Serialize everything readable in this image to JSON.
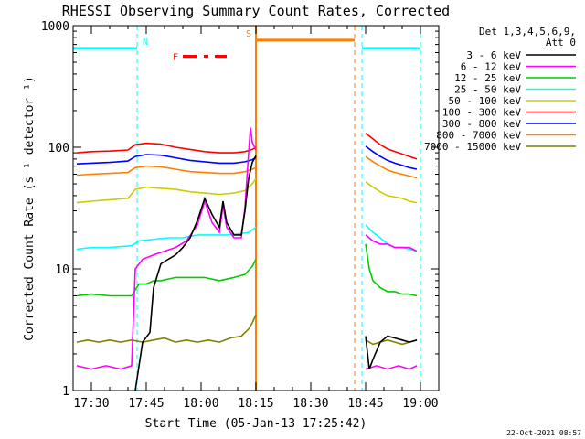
{
  "chart_data": {
    "type": "line",
    "title": "RHESSI Observing Summary Count Rates, Corrected",
    "ylabel": "Corrected Count Rate (s⁻¹ detector⁻¹)",
    "xlabel": "Start Time (05-Jan-13 17:25:42)",
    "y_scale": "log",
    "ylim": [
      1,
      1000
    ],
    "xlim_minutes_after_1725": [
      0,
      100
    ],
    "y_ticks": [
      "1",
      "10",
      "100",
      "1000"
    ],
    "x_ticks": [
      {
        "label": "17:30",
        "min": 5
      },
      {
        "label": "17:45",
        "min": 20
      },
      {
        "label": "18:00",
        "min": 35
      },
      {
        "label": "18:15",
        "min": 50
      },
      {
        "label": "18:30",
        "min": 65
      },
      {
        "label": "18:45",
        "min": 80
      },
      {
        "label": "19:00",
        "min": 95
      }
    ],
    "legend_header": [
      "Det 1,3,4,5,6,9,",
      "Att 0"
    ],
    "legend_placement": "right",
    "series": [
      {
        "name": "3 - 6 keV",
        "color": "#000000",
        "segments": [
          [
            [
              17,
              1
            ],
            [
              19,
              2.5
            ],
            [
              21,
              3
            ],
            [
              22,
              7
            ],
            [
              24,
              11
            ],
            [
              26,
              12
            ],
            [
              28,
              13
            ],
            [
              30,
              15
            ],
            [
              32,
              18
            ],
            [
              34,
              25
            ],
            [
              36,
              38
            ],
            [
              38,
              28
            ],
            [
              40,
              22
            ],
            [
              41,
              36
            ],
            [
              42,
              24
            ],
            [
              44,
              19
            ],
            [
              46,
              19
            ],
            [
              47,
              30
            ],
            [
              48,
              55
            ],
            [
              49,
              75
            ],
            [
              50,
              85
            ]
          ],
          [
            [
              80,
              2.8
            ],
            [
              81,
              1.5
            ],
            [
              82,
              1.8
            ],
            [
              84,
              2.5
            ],
            [
              86,
              2.8
            ],
            [
              88,
              2.7
            ],
            [
              90,
              2.6
            ],
            [
              92,
              2.5
            ],
            [
              94,
              2.6
            ]
          ]
        ]
      },
      {
        "name": "6 - 12 keV",
        "color": "#ff00ff",
        "segments": [
          [
            [
              1,
              1.6
            ],
            [
              5,
              1.5
            ],
            [
              9,
              1.6
            ],
            [
              13,
              1.5
            ],
            [
              16,
              1.6
            ],
            [
              17,
              10
            ],
            [
              19,
              12
            ],
            [
              22,
              13
            ],
            [
              25,
              14
            ],
            [
              28,
              15
            ],
            [
              31,
              17
            ],
            [
              34,
              23
            ],
            [
              36,
              36
            ],
            [
              38,
              24
            ],
            [
              40,
              20
            ],
            [
              41,
              33
            ],
            [
              42,
              22
            ],
            [
              44,
              18
            ],
            [
              46,
              18
            ],
            [
              47,
              32
            ],
            [
              48,
              90
            ],
            [
              48.5,
              145
            ],
            [
              49,
              110
            ],
            [
              50,
              95
            ]
          ],
          [
            [
              80,
              19
            ],
            [
              82,
              17
            ],
            [
              84,
              16
            ],
            [
              86,
              16
            ],
            [
              88,
              15
            ],
            [
              90,
              15
            ],
            [
              92,
              15
            ],
            [
              94,
              14
            ]
          ],
          [
            [
              80,
              1.5
            ],
            [
              83,
              1.6
            ],
            [
              86,
              1.5
            ],
            [
              89,
              1.6
            ],
            [
              92,
              1.5
            ],
            [
              94,
              1.6
            ]
          ]
        ]
      },
      {
        "name": "12 - 25 keV",
        "color": "#00cc00",
        "segments": [
          [
            [
              1,
              6
            ],
            [
              5,
              6.2
            ],
            [
              10,
              6
            ],
            [
              16,
              6
            ],
            [
              18,
              7.5
            ],
            [
              20,
              7.5
            ],
            [
              22,
              8
            ],
            [
              24,
              8
            ],
            [
              28,
              8.5
            ],
            [
              32,
              8.5
            ],
            [
              36,
              8.5
            ],
            [
              40,
              8
            ],
            [
              44,
              8.5
            ],
            [
              47,
              9
            ],
            [
              49,
              10.5
            ],
            [
              50,
              12
            ]
          ],
          [
            [
              80,
              16
            ],
            [
              81,
              10
            ],
            [
              82,
              8
            ],
            [
              84,
              7
            ],
            [
              86,
              6.5
            ],
            [
              88,
              6.5
            ],
            [
              90,
              6.2
            ],
            [
              92,
              6.2
            ],
            [
              94,
              6
            ]
          ]
        ]
      },
      {
        "name": "25 - 50 keV",
        "color": "#00ffff",
        "segments": [
          [
            [
              1,
              14.5
            ],
            [
              5,
              15
            ],
            [
              10,
              15
            ],
            [
              16,
              15.5
            ],
            [
              18,
              17
            ],
            [
              22,
              17.5
            ],
            [
              26,
              18
            ],
            [
              30,
              18
            ],
            [
              34,
              19
            ],
            [
              38,
              19
            ],
            [
              42,
              19
            ],
            [
              46,
              19.5
            ],
            [
              48,
              20
            ],
            [
              50,
              22
            ]
          ],
          [
            [
              80,
              23
            ],
            [
              82,
              20
            ],
            [
              84,
              18
            ],
            [
              86,
              16
            ],
            [
              88,
              15
            ],
            [
              90,
              15
            ],
            [
              92,
              14.5
            ],
            [
              94,
              14
            ]
          ]
        ]
      },
      {
        "name": "50 - 100 keV",
        "color": "#cccc00",
        "segments": [
          [
            [
              1,
              35
            ],
            [
              5,
              36
            ],
            [
              10,
              37
            ],
            [
              15,
              38
            ],
            [
              17,
              45
            ],
            [
              20,
              47
            ],
            [
              24,
              46
            ],
            [
              28,
              45
            ],
            [
              32,
              43
            ],
            [
              36,
              42
            ],
            [
              40,
              41
            ],
            [
              44,
              42
            ],
            [
              47,
              44
            ],
            [
              49,
              50
            ],
            [
              50,
              55
            ]
          ],
          [
            [
              80,
              52
            ],
            [
              82,
              47
            ],
            [
              84,
              43
            ],
            [
              86,
              40
            ],
            [
              88,
              39
            ],
            [
              90,
              38
            ],
            [
              92,
              36
            ],
            [
              94,
              35
            ]
          ]
        ]
      },
      {
        "name": "100 - 300 keV",
        "color": "#ff0000",
        "segments": [
          [
            [
              1,
              90
            ],
            [
              5,
              92
            ],
            [
              10,
              93
            ],
            [
              15,
              95
            ],
            [
              17,
              105
            ],
            [
              20,
              108
            ],
            [
              24,
              106
            ],
            [
              28,
              100
            ],
            [
              32,
              96
            ],
            [
              36,
              92
            ],
            [
              40,
              90
            ],
            [
              44,
              90
            ],
            [
              47,
              92
            ],
            [
              49,
              96
            ],
            [
              50,
              100
            ]
          ],
          [
            [
              80,
              130
            ],
            [
              82,
              117
            ],
            [
              84,
              105
            ],
            [
              86,
              97
            ],
            [
              88,
              92
            ],
            [
              90,
              88
            ],
            [
              92,
              84
            ],
            [
              94,
              80
            ]
          ]
        ]
      },
      {
        "name": "300 - 800 keV",
        "color": "#0000ff",
        "segments": [
          [
            [
              1,
              73
            ],
            [
              5,
              74
            ],
            [
              10,
              75
            ],
            [
              15,
              77
            ],
            [
              17,
              84
            ],
            [
              20,
              87
            ],
            [
              24,
              86
            ],
            [
              28,
              82
            ],
            [
              32,
              78
            ],
            [
              36,
              76
            ],
            [
              40,
              74
            ],
            [
              44,
              74
            ],
            [
              47,
              76
            ],
            [
              49,
              79
            ],
            [
              50,
              82
            ]
          ],
          [
            [
              80,
              102
            ],
            [
              82,
              92
            ],
            [
              84,
              84
            ],
            [
              86,
              78
            ],
            [
              88,
              74
            ],
            [
              90,
              71
            ],
            [
              92,
              68
            ],
            [
              94,
              66
            ]
          ]
        ]
      },
      {
        "name": "800 - 7000 keV",
        "color": "#ff8000",
        "segments": [
          [
            [
              1,
              59
            ],
            [
              5,
              60
            ],
            [
              10,
              61
            ],
            [
              15,
              62
            ],
            [
              17,
              68
            ],
            [
              20,
              70
            ],
            [
              24,
              69
            ],
            [
              28,
              66
            ],
            [
              32,
              63
            ],
            [
              36,
              62
            ],
            [
              40,
              61
            ],
            [
              44,
              61
            ],
            [
              47,
              63
            ],
            [
              49,
              66
            ],
            [
              50,
              68
            ]
          ],
          [
            [
              80,
              84
            ],
            [
              82,
              76
            ],
            [
              84,
              70
            ],
            [
              86,
              65
            ],
            [
              88,
              62
            ],
            [
              90,
              60
            ],
            [
              92,
              58
            ],
            [
              94,
              56
            ]
          ]
        ]
      },
      {
        "name": "7000 - 15000 keV",
        "color": "#808000",
        "segments": [
          [
            [
              1,
              2.5
            ],
            [
              4,
              2.6
            ],
            [
              7,
              2.5
            ],
            [
              10,
              2.6
            ],
            [
              13,
              2.5
            ],
            [
              16,
              2.6
            ],
            [
              19,
              2.5
            ],
            [
              22,
              2.6
            ],
            [
              25,
              2.7
            ],
            [
              28,
              2.5
            ],
            [
              31,
              2.6
            ],
            [
              34,
              2.5
            ],
            [
              37,
              2.6
            ],
            [
              40,
              2.5
            ],
            [
              43,
              2.7
            ],
            [
              46,
              2.8
            ],
            [
              48,
              3.2
            ],
            [
              49,
              3.6
            ],
            [
              50,
              4.2
            ]
          ],
          [
            [
              80,
              2.6
            ],
            [
              82,
              2.4
            ],
            [
              84,
              2.5
            ],
            [
              86,
              2.6
            ],
            [
              88,
              2.5
            ],
            [
              90,
              2.4
            ],
            [
              92,
              2.5
            ],
            [
              94,
              2.6
            ]
          ]
        ]
      }
    ],
    "state_bars": [
      {
        "label": "N",
        "color": "#00ffff",
        "from": 0,
        "to": 17.5,
        "value": 650
      },
      {
        "label": "",
        "color": "#00ffff",
        "from": 79,
        "to": 95,
        "value": 650
      },
      {
        "label": "S",
        "color": "#ff8000",
        "from": 50,
        "to": 77,
        "value": 760
      },
      {
        "label": "F",
        "color": "#ff0000",
        "from": 30,
        "to": 42,
        "value": 560,
        "dashed": true
      }
    ],
    "vertical_markers": [
      {
        "min": 17.5,
        "color": "#00ffff",
        "dashed": true
      },
      {
        "min": 79,
        "color": "#00ffff",
        "dashed": true
      },
      {
        "min": 95,
        "color": "#00ffff",
        "dashed": true
      },
      {
        "min": 50,
        "color": "#ff8000",
        "dashed": false
      },
      {
        "min": 77,
        "color": "#ff8000",
        "dashed": true
      }
    ]
  },
  "footer": {
    "timestamp": "22-Oct-2021 08:57"
  }
}
